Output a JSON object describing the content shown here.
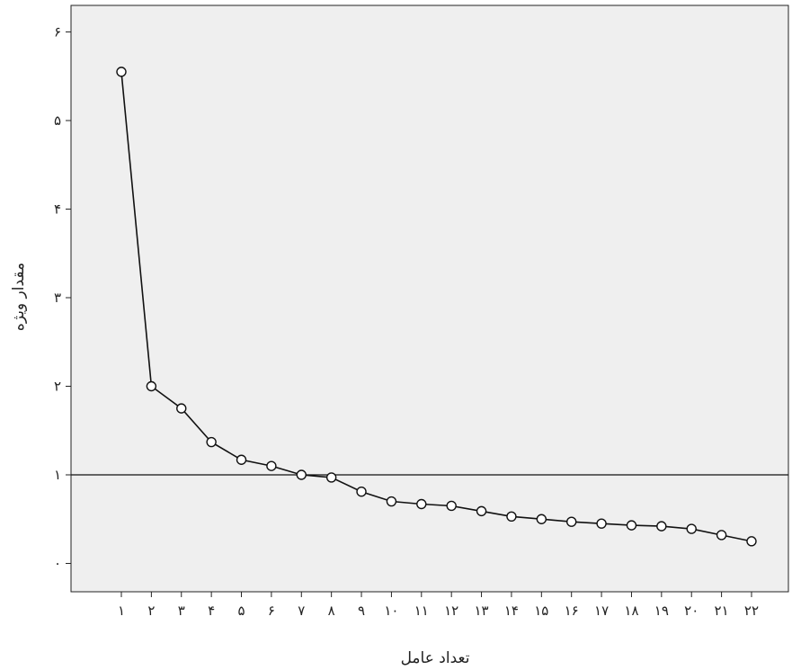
{
  "chart_data": {
    "type": "line",
    "title": "",
    "xlabel": "تعداد عامل",
    "ylabel": "مقدار ویژه",
    "x": [
      "۱",
      "۲",
      "۳",
      "۴",
      "۵",
      "۶",
      "۷",
      "۸",
      "۹",
      "۱۰",
      "۱۱",
      "۱۲",
      "۱۳",
      "۱۴",
      "۱۵",
      "۱۶",
      "۱۷",
      "۱۸",
      "۱۹",
      "۲۰",
      "۲۱",
      "۲۲"
    ],
    "series": [
      {
        "values": [
          5.55,
          2.0,
          1.75,
          1.37,
          1.17,
          1.1,
          1.0,
          0.97,
          0.81,
          0.7,
          0.67,
          0.65,
          0.59,
          0.53,
          0.5,
          0.47,
          0.45,
          0.43,
          0.42,
          0.39,
          0.32,
          0.25
        ]
      }
    ],
    "y_ticks": [
      {
        "value": 0,
        "label": "۰"
      },
      {
        "value": 1,
        "label": "۱"
      },
      {
        "value": 2,
        "label": "۲"
      },
      {
        "value": 3,
        "label": "۳"
      },
      {
        "value": 4,
        "label": "۴"
      },
      {
        "value": 5,
        "label": "۵"
      },
      {
        "value": 6,
        "label": "۶"
      }
    ],
    "ylim": [
      -0.32,
      6.3
    ],
    "reference_line": 1,
    "grid": false,
    "legend": "none",
    "colors": {
      "plot_background": "#efefef",
      "line": "#111111",
      "marker_fill": "#ffffff"
    }
  }
}
